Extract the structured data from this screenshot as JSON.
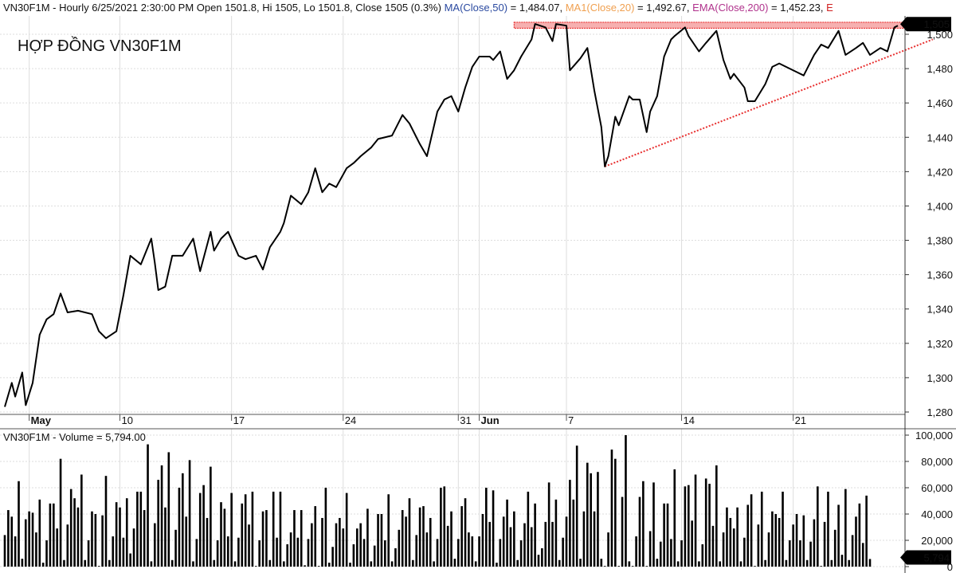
{
  "header": {
    "symbol_info": "VN30F1M - Hourly 6/25/2021 2:30:00 PM Open 1501.8, Hi 1505, Lo 1501.8, Close 1505 (0.3%)",
    "ma": "MA(Close,50)",
    "ma_value": " = 1,484.07, ",
    "ma1": "MA1(Close,20)",
    "ma1_value": " = 1,492.67, ",
    "ema": "EMA(Close,200)",
    "ema_value": " = 1,452.23, ",
    "trailing": "E",
    "colors": {
      "ma": "#2b4aa0",
      "ma1": "#f0a050",
      "ema": "#b0328c",
      "trailing": "#d02020"
    }
  },
  "annotation_title": "HỢP ĐỒNG VN30F1M",
  "volume_header": "VN30F1M - Volume = 5,794.00",
  "chart_data": [
    {
      "type": "line",
      "title": "VN30F1M - Hourly",
      "ylabel": "Price",
      "ylim": [
        1275,
        1510
      ],
      "y_ticks": [
        1280,
        1300,
        1320,
        1340,
        1360,
        1380,
        1400,
        1420,
        1440,
        1460,
        1480,
        1500
      ],
      "y_tick_labels": [
        "1,280",
        "1,300",
        "1,320",
        "1,340",
        "1,360",
        "1,380",
        "1,400",
        "1,420",
        "1,440",
        "1,460",
        "1,480",
        "1,500"
      ],
      "x_ticks": [
        {
          "bar": 7,
          "label": "May",
          "bold": true
        },
        {
          "bar": 33,
          "label": "10"
        },
        {
          "bar": 65,
          "label": "17"
        },
        {
          "bar": 97,
          "label": "24"
        },
        {
          "bar": 130,
          "label": "31"
        },
        {
          "bar": 136,
          "label": "Jun",
          "bold": true
        },
        {
          "bar": 161,
          "label": "7"
        },
        {
          "bar": 194,
          "label": "14"
        },
        {
          "bar": 226,
          "label": "21"
        }
      ],
      "last_price_label": "1,505",
      "line_color": "#000000",
      "points": [
        [
          0,
          1283
        ],
        [
          2,
          1297
        ],
        [
          3,
          1289
        ],
        [
          5,
          1303
        ],
        [
          6,
          1284
        ],
        [
          8,
          1297
        ],
        [
          10,
          1325
        ],
        [
          12,
          1334
        ],
        [
          14,
          1337
        ],
        [
          16,
          1349
        ],
        [
          18,
          1338
        ],
        [
          21,
          1339
        ],
        [
          25,
          1337
        ],
        [
          27,
          1327
        ],
        [
          29,
          1323
        ],
        [
          32,
          1327
        ],
        [
          34,
          1348
        ],
        [
          36,
          1371
        ],
        [
          39,
          1366
        ],
        [
          42,
          1381
        ],
        [
          43,
          1367
        ],
        [
          44,
          1351
        ],
        [
          46,
          1353
        ],
        [
          48,
          1371
        ],
        [
          51,
          1371
        ],
        [
          54,
          1381
        ],
        [
          56,
          1362
        ],
        [
          59,
          1385
        ],
        [
          60,
          1374
        ],
        [
          62,
          1381
        ],
        [
          64,
          1385
        ],
        [
          67,
          1371
        ],
        [
          69,
          1369
        ],
        [
          72,
          1371
        ],
        [
          74,
          1363
        ],
        [
          76,
          1376
        ],
        [
          79,
          1385
        ],
        [
          80,
          1390
        ],
        [
          82,
          1406
        ],
        [
          85,
          1401
        ],
        [
          87,
          1408
        ],
        [
          89,
          1422
        ],
        [
          91,
          1408
        ],
        [
          93,
          1413
        ],
        [
          95,
          1411
        ],
        [
          98,
          1422
        ],
        [
          100,
          1425
        ],
        [
          102,
          1429
        ],
        [
          105,
          1434
        ],
        [
          107,
          1439
        ],
        [
          111,
          1441
        ],
        [
          114,
          1453
        ],
        [
          116,
          1448
        ],
        [
          119,
          1436
        ],
        [
          121,
          1429
        ],
        [
          124,
          1455
        ],
        [
          126,
          1462
        ],
        [
          128,
          1464
        ],
        [
          130,
          1455
        ],
        [
          132,
          1469
        ],
        [
          134,
          1481
        ],
        [
          136,
          1487
        ],
        [
          139,
          1487
        ],
        [
          140,
          1485
        ],
        [
          142,
          1490
        ],
        [
          144,
          1474
        ],
        [
          146,
          1479
        ],
        [
          148,
          1487
        ],
        [
          151,
          1497
        ],
        [
          152,
          1506
        ],
        [
          155,
          1504
        ],
        [
          157,
          1496
        ],
        [
          158,
          1506
        ],
        [
          161,
          1505
        ],
        [
          162,
          1479
        ],
        [
          165,
          1486
        ],
        [
          167,
          1492
        ],
        [
          169,
          1467
        ],
        [
          171,
          1446
        ],
        [
          172,
          1423
        ],
        [
          173,
          1429
        ],
        [
          175,
          1452
        ],
        [
          176,
          1447
        ],
        [
          179,
          1464
        ],
        [
          180,
          1462
        ],
        [
          182,
          1462
        ],
        [
          184,
          1443
        ],
        [
          185,
          1455
        ],
        [
          187,
          1464
        ],
        [
          189,
          1487
        ],
        [
          191,
          1497
        ],
        [
          192,
          1499
        ],
        [
          195,
          1504
        ],
        [
          196,
          1499
        ],
        [
          199,
          1490
        ],
        [
          201,
          1495
        ],
        [
          204,
          1502
        ],
        [
          206,
          1485
        ],
        [
          208,
          1474
        ],
        [
          209,
          1477
        ],
        [
          212,
          1469
        ],
        [
          213,
          1461
        ],
        [
          215,
          1461
        ],
        [
          218,
          1471
        ],
        [
          220,
          1481
        ],
        [
          222,
          1483
        ],
        [
          225,
          1480
        ],
        [
          227,
          1478
        ],
        [
          229,
          1476
        ],
        [
          232,
          1488
        ],
        [
          234,
          1494
        ],
        [
          236,
          1492
        ],
        [
          239,
          1502
        ],
        [
          241,
          1488
        ],
        [
          244,
          1492
        ],
        [
          246,
          1495
        ],
        [
          248,
          1488
        ],
        [
          251,
          1492
        ],
        [
          253,
          1490
        ],
        [
          255,
          1504
        ],
        [
          256,
          1505
        ]
      ],
      "resistance_zone": {
        "from_bar": 146,
        "to_bar": 265,
        "low": 1503.5,
        "high": 1507,
        "color": "#e83030"
      },
      "trendline": {
        "from": [
          172,
          1423
        ],
        "to": [
          266,
          1497
        ],
        "color": "#e83030"
      }
    },
    {
      "type": "bar",
      "title": "VN30F1M - Volume",
      "ylim": [
        0,
        100000
      ],
      "y_ticks": [
        0,
        20000,
        40000,
        60000,
        80000,
        100000
      ],
      "y_tick_labels": [
        "0",
        "20,000",
        "40,000",
        "60,000",
        "80,000",
        "100,000"
      ],
      "last_value_label": "5,794",
      "values": [
        24000,
        43000,
        38000,
        23000,
        65000,
        6000,
        36000,
        42000,
        41000,
        26000,
        51000,
        3000,
        20000,
        48000,
        48000,
        29000,
        82000,
        5000,
        32000,
        59000,
        52000,
        45000,
        70000,
        5000,
        20000,
        42000,
        40000,
        500,
        39000,
        69000,
        5000,
        23000,
        49000,
        45000,
        22000,
        52000,
        10000,
        29000,
        57000,
        57000,
        43000,
        93000,
        4000,
        33000,
        66000,
        77000,
        45000,
        87000,
        5000,
        28000,
        60000,
        71000,
        38000,
        81000,
        4000,
        21000,
        56000,
        62000,
        37000,
        76000,
        5000,
        20000,
        49000,
        44000,
        23000,
        56000,
        4000,
        22000,
        48000,
        55000,
        32000,
        57000,
        500,
        20000,
        42000,
        43000,
        5000,
        57000,
        22000,
        57000,
        4000,
        17000,
        26000,
        43000,
        22000,
        43000,
        1000,
        21000,
        33000,
        46000,
        500,
        37000,
        60000,
        3000,
        15000,
        33000,
        37000,
        29000,
        56000,
        3000,
        17000,
        29000,
        33000,
        21000,
        44000,
        4000,
        16000,
        40000,
        40000,
        20000,
        55000,
        4000,
        14000,
        28000,
        43000,
        38000,
        52000,
        5000,
        24000,
        45000,
        46000,
        26000,
        37000,
        4000,
        21000,
        60000,
        61000,
        31000,
        42000,
        6000,
        21000,
        46000,
        52000,
        26000,
        23000,
        4000,
        23000,
        40000,
        60000,
        34000,
        58000,
        3000,
        21000,
        38000,
        51000,
        30000,
        42000,
        5000,
        20000,
        33000,
        57000,
        30000,
        48000,
        9000,
        14000,
        34000,
        64000,
        34000,
        51000,
        5000,
        22000,
        38000,
        66000,
        51000,
        92000,
        6000,
        42000,
        79000,
        71000,
        42000,
        72000,
        6000,
        500,
        26000,
        89000,
        82000,
        500,
        53000,
        100000,
        4000,
        500,
        23000,
        53000,
        65000,
        500,
        27000,
        64000,
        6000,
        19000,
        48000,
        48000,
        21000,
        74000,
        4000,
        20000,
        61000,
        62000,
        35000,
        70000,
        4000,
        17000,
        67000,
        63000,
        31000,
        77000,
        4000,
        26000,
        45000,
        37000,
        29000,
        45000,
        4000,
        22000,
        47000,
        55000,
        500,
        32000,
        57000,
        5000,
        26000,
        42000,
        40000,
        37000,
        57000,
        5000,
        20000,
        32000,
        40000,
        20000,
        39000,
        5000,
        19000,
        36000,
        61000,
        500,
        34000,
        57000,
        5000,
        28000,
        47000,
        9000,
        59000,
        5000,
        24000,
        38000,
        48000,
        18000,
        54000,
        5794
      ]
    }
  ]
}
